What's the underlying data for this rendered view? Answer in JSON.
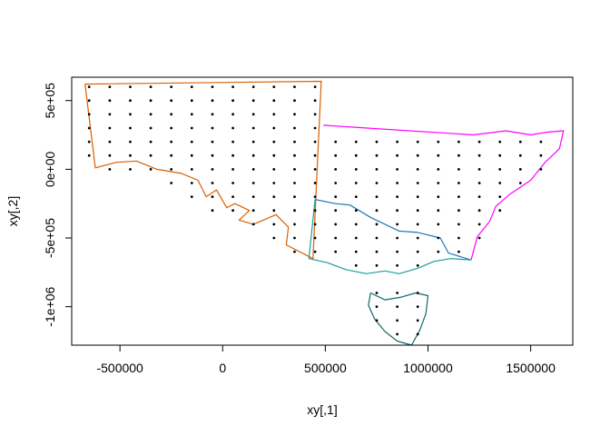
{
  "chart_data": {
    "type": "scatter",
    "xlabel": "xy[,1]",
    "ylabel": "xy[,2]",
    "xlim": [
      -735000,
      1705000
    ],
    "ylim": [
      -1280000,
      670000
    ],
    "x_ticks": [
      {
        "value": -500000,
        "label": "-500000"
      },
      {
        "value": 0,
        "label": "0"
      },
      {
        "value": 500000,
        "label": "500000"
      },
      {
        "value": 1000000,
        "label": "1000000"
      },
      {
        "value": 1500000,
        "label": "1500000"
      }
    ],
    "y_ticks": [
      {
        "value": 500000,
        "label": "5e+05"
      },
      {
        "value": 0,
        "label": "0e+00"
      },
      {
        "value": -500000,
        "label": "-5e+05"
      },
      {
        "value": -1000000,
        "label": "-1e+06"
      }
    ],
    "grid": false,
    "points": {
      "spacing": 100000,
      "rows": [
        {
          "y": 600000,
          "x_from": -650000,
          "x_to": 450000
        },
        {
          "y": 500000,
          "x_from": -650000,
          "x_to": 450000
        },
        {
          "y": 400000,
          "x_from": -650000,
          "x_to": 450000
        },
        {
          "y": 300000,
          "x_from": -650000,
          "x_to": 450000
        },
        {
          "y": 200000,
          "x_from": -650000,
          "x_to": 1550000
        },
        {
          "y": 100000,
          "x_from": -650000,
          "x_to": 1550000
        },
        {
          "y": 0,
          "x_from": -550000,
          "x_to": 1550000
        },
        {
          "y": -100000,
          "x_from": -250000,
          "x_to": 1450000
        },
        {
          "y": -200000,
          "x_from": -150000,
          "x_to": 1350000
        },
        {
          "y": -300000,
          "x_from": -50000,
          "x_to": 1350000
        },
        {
          "y": -400000,
          "x_from": 150000,
          "x_to": 1250000
        },
        {
          "y": -500000,
          "x_from": 250000,
          "x_to": 1250000
        },
        {
          "y": -600000,
          "x_from": 350000,
          "x_to": 1150000
        },
        {
          "y": -700000,
          "x_from": 650000,
          "x_to": 950000
        },
        {
          "y": -900000,
          "x_from": 750000,
          "x_to": 950000
        },
        {
          "y": -1000000,
          "x_from": 750000,
          "x_to": 950000
        },
        {
          "y": -1100000,
          "x_from": 750000,
          "x_to": 950000
        },
        {
          "y": -1200000,
          "x_from": 850000,
          "x_to": 950000
        }
      ]
    },
    "regions": [
      {
        "color": "#D95F02",
        "coords": [
          [
            -670000,
            620000
          ],
          [
            480000,
            640000
          ],
          [
            440000,
            -650000
          ],
          [
            310000,
            -550000
          ],
          [
            320000,
            -420000
          ],
          [
            260000,
            -330000
          ],
          [
            150000,
            -400000
          ],
          [
            80000,
            -370000
          ],
          [
            130000,
            -300000
          ],
          [
            60000,
            -250000
          ],
          [
            20000,
            -280000
          ],
          [
            -30000,
            -150000
          ],
          [
            -80000,
            -200000
          ],
          [
            -120000,
            -80000
          ],
          [
            -200000,
            -30000
          ],
          [
            -320000,
            0
          ],
          [
            -420000,
            60000
          ],
          [
            -520000,
            50000
          ],
          [
            -620000,
            10000
          ],
          [
            -670000,
            620000
          ]
        ]
      },
      {
        "color": "#FF00FF",
        "coords": [
          [
            490000,
            320000
          ],
          [
            1220000,
            250000
          ],
          [
            1380000,
            280000
          ],
          [
            1500000,
            250000
          ],
          [
            1580000,
            270000
          ],
          [
            1660000,
            280000
          ],
          [
            1640000,
            150000
          ],
          [
            1570000,
            50000
          ],
          [
            1500000,
            -80000
          ],
          [
            1400000,
            -180000
          ],
          [
            1330000,
            -270000
          ],
          [
            1300000,
            -380000
          ],
          [
            1240000,
            -490000
          ],
          [
            1210000,
            -660000
          ]
        ]
      },
      {
        "color": "#1F78B4",
        "coords": [
          [
            450000,
            -220000
          ],
          [
            550000,
            -250000
          ],
          [
            620000,
            -260000
          ],
          [
            720000,
            -350000
          ],
          [
            860000,
            -450000
          ],
          [
            950000,
            -460000
          ],
          [
            1060000,
            -500000
          ],
          [
            1100000,
            -610000
          ],
          [
            1210000,
            -660000
          ]
        ]
      },
      {
        "color": "#1B9E9E",
        "coords": [
          [
            450000,
            -220000
          ],
          [
            420000,
            -650000
          ],
          [
            510000,
            -680000
          ],
          [
            600000,
            -730000
          ],
          [
            700000,
            -760000
          ],
          [
            790000,
            -740000
          ],
          [
            860000,
            -760000
          ],
          [
            950000,
            -720000
          ],
          [
            1030000,
            -670000
          ],
          [
            1110000,
            -650000
          ],
          [
            1210000,
            -660000
          ]
        ]
      },
      {
        "color": "#0F6B6B",
        "coords": [
          [
            720000,
            -900000
          ],
          [
            790000,
            -950000
          ],
          [
            870000,
            -930000
          ],
          [
            940000,
            -900000
          ],
          [
            1000000,
            -920000
          ],
          [
            990000,
            -1050000
          ],
          [
            960000,
            -1170000
          ],
          [
            920000,
            -1280000
          ],
          [
            850000,
            -1250000
          ],
          [
            790000,
            -1180000
          ],
          [
            740000,
            -1090000
          ],
          [
            710000,
            -990000
          ],
          [
            720000,
            -900000
          ]
        ]
      }
    ]
  }
}
